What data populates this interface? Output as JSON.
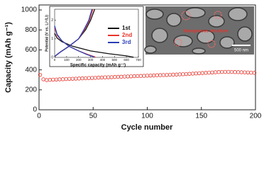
{
  "chart_data": [
    {
      "type": "scatter",
      "xlabel": "Cycle number",
      "ylabel": "Capacity (mAh g⁻¹)",
      "xlim": [
        0,
        200
      ],
      "xticks": [
        0,
        50,
        100,
        150,
        200
      ],
      "ylim": [
        0,
        1050
      ],
      "yticks": [
        0,
        200,
        400,
        600,
        800,
        1000
      ],
      "color": "#e8332a",
      "x": [
        1,
        4,
        7,
        10,
        13,
        16,
        19,
        22,
        25,
        28,
        31,
        34,
        37,
        40,
        43,
        46,
        49,
        52,
        55,
        58,
        61,
        64,
        67,
        70,
        73,
        76,
        79,
        82,
        85,
        88,
        91,
        94,
        97,
        100,
        103,
        106,
        109,
        112,
        115,
        118,
        121,
        124,
        127,
        130,
        133,
        136,
        139,
        142,
        145,
        148,
        151,
        154,
        157,
        160,
        163,
        166,
        169,
        172,
        175,
        178,
        181,
        184,
        187,
        190,
        193,
        196,
        199
      ],
      "values": [
        350,
        305,
        298,
        300,
        302,
        303,
        305,
        306,
        308,
        310,
        311,
        312,
        313,
        315,
        316,
        318,
        319,
        320,
        322,
        323,
        325,
        326,
        327,
        329,
        330,
        331,
        333,
        334,
        335,
        337,
        338,
        339,
        340,
        342,
        343,
        344,
        346,
        347,
        348,
        349,
        351,
        352,
        353,
        355,
        356,
        358,
        360,
        362,
        364,
        366,
        368,
        370,
        372,
        374,
        376,
        378,
        379,
        380,
        380,
        379,
        378,
        377,
        376,
        375,
        374,
        372,
        370
      ]
    },
    {
      "type": "line",
      "xlabel": "Specific capacity (mAh g⁻¹)",
      "ylabel": "Potential (V vs. Li⁺/Li)",
      "xlim": [
        0,
        700
      ],
      "xticks": [
        0,
        100,
        200,
        300,
        400,
        500,
        600,
        700
      ],
      "ylim": [
        0,
        2.6
      ],
      "yticks": [
        0,
        1,
        2
      ],
      "series": [
        {
          "name": "1st",
          "color": "#111111",
          "x": [
            0,
            20,
            60,
            150,
            300,
            450,
            600,
            660,
            null,
            0,
            50,
            120,
            200,
            260,
            300,
            335
          ],
          "values": [
            1.3,
            1.05,
            0.85,
            0.6,
            0.35,
            0.2,
            0.08,
            0.01,
            null,
            0.05,
            0.3,
            0.6,
            1.0,
            1.5,
            2.0,
            2.6
          ]
        },
        {
          "name": "2nd",
          "color": "#e8332a",
          "x": [
            0,
            20,
            60,
            120,
            200,
            280,
            340,
            null,
            0,
            50,
            120,
            200,
            250,
            290,
            320
          ],
          "values": [
            1.6,
            1.2,
            0.9,
            0.6,
            0.35,
            0.15,
            0.02,
            null,
            0.05,
            0.3,
            0.6,
            1.0,
            1.5,
            2.0,
            2.6
          ]
        },
        {
          "name": "3rd",
          "color": "#2a3fb5",
          "x": [
            0,
            20,
            60,
            120,
            200,
            270,
            330,
            null,
            0,
            50,
            120,
            200,
            245,
            285,
            312
          ],
          "values": [
            1.7,
            1.25,
            0.9,
            0.6,
            0.35,
            0.15,
            0.02,
            null,
            0.05,
            0.3,
            0.6,
            1.0,
            1.5,
            2.0,
            2.6
          ]
        }
      ]
    }
  ],
  "image": {
    "annotation": "Nanoporous structure",
    "scale_bar": "500 nm"
  }
}
